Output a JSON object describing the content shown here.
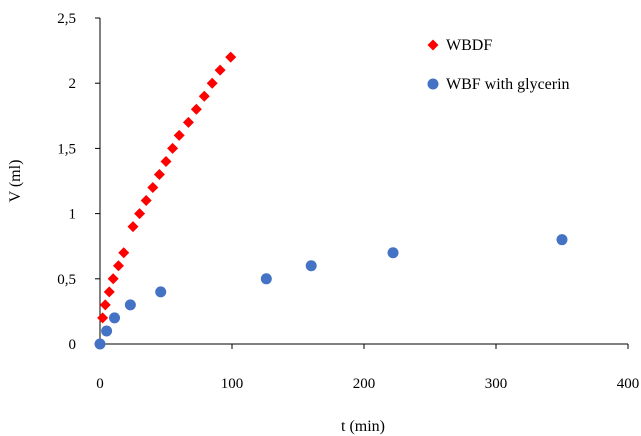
{
  "chart_data": {
    "type": "scatter",
    "title": "",
    "xlabel": "t (min)",
    "ylabel": "V (ml)",
    "xlim": [
      0,
      400
    ],
    "ylim": [
      0,
      2.5
    ],
    "x_ticks": [
      {
        "value": 0,
        "label": "0"
      },
      {
        "value": 100,
        "label": "100"
      },
      {
        "value": 200,
        "label": "200"
      },
      {
        "value": 300,
        "label": "300"
      },
      {
        "value": 400,
        "label": "400"
      }
    ],
    "y_ticks": [
      {
        "value": 0,
        "label": "0"
      },
      {
        "value": 0.5,
        "label": "0,5"
      },
      {
        "value": 1,
        "label": "1"
      },
      {
        "value": 1.5,
        "label": "1,5"
      },
      {
        "value": 2,
        "label": "2"
      },
      {
        "value": 2.5,
        "label": "2,5"
      }
    ],
    "grid": false,
    "legend_position": "top-right",
    "series": [
      {
        "name": "WBDF",
        "marker": "diamond",
        "color": "#ff0000",
        "points": [
          [
            2,
            0.2
          ],
          [
            4,
            0.3
          ],
          [
            7,
            0.4
          ],
          [
            10,
            0.5
          ],
          [
            14,
            0.6
          ],
          [
            18,
            0.7
          ],
          [
            25,
            0.9
          ],
          [
            30,
            1.0
          ],
          [
            35,
            1.1
          ],
          [
            40,
            1.2
          ],
          [
            45,
            1.3
          ],
          [
            50,
            1.4
          ],
          [
            55,
            1.5
          ],
          [
            60,
            1.6
          ],
          [
            67,
            1.7
          ],
          [
            73,
            1.8
          ],
          [
            79,
            1.9
          ],
          [
            85,
            2.0
          ],
          [
            91,
            2.1
          ],
          [
            99,
            2.2
          ]
        ]
      },
      {
        "name": "WBF with glycerin",
        "marker": "circle",
        "color": "#4472c4",
        "points": [
          [
            0,
            0
          ],
          [
            5,
            0.1
          ],
          [
            11,
            0.2
          ],
          [
            23,
            0.3
          ],
          [
            46,
            0.4
          ],
          [
            126,
            0.5
          ],
          [
            160,
            0.6
          ],
          [
            222,
            0.7
          ],
          [
            350,
            0.8
          ]
        ]
      }
    ]
  }
}
